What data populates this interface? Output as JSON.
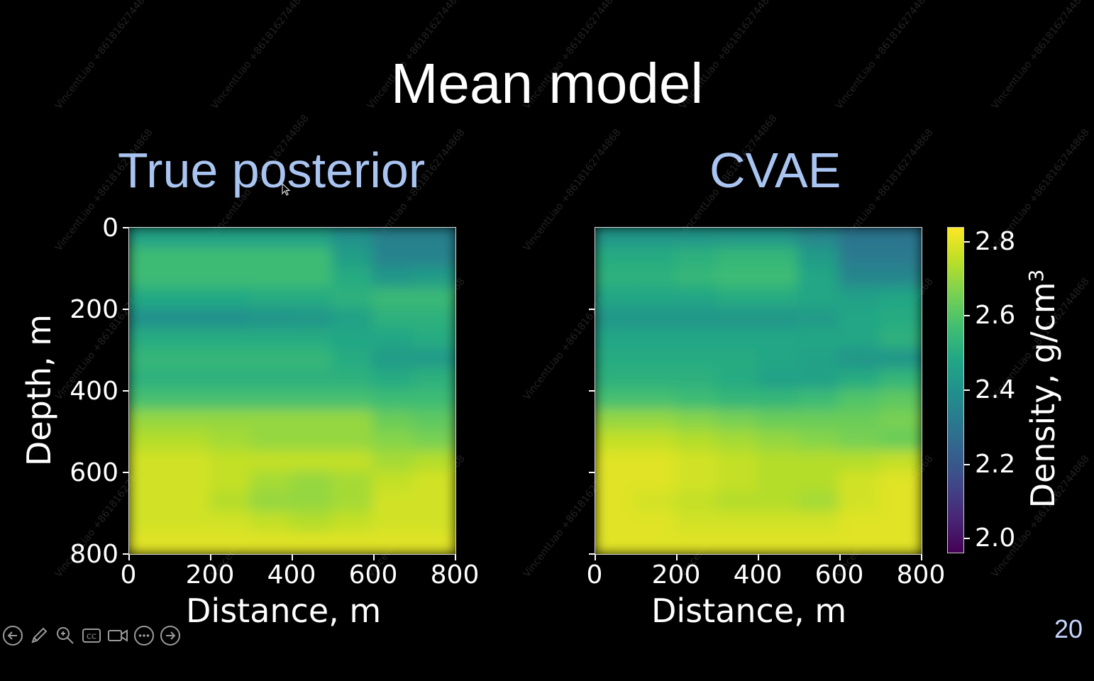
{
  "slide": {
    "title": "Mean model",
    "page_number": "20",
    "subtitles": {
      "left": "True posterior",
      "right": "CVAE"
    }
  },
  "colors": {
    "subtitle": "#a9c4f0",
    "background": "#000000",
    "page_number": "#c8d6ff"
  },
  "watermark_text": "VincentLiao +8618162744868",
  "toolbar": {
    "items": [
      {
        "name": "previous-slide-button",
        "icon": "arrow-left-circle-icon"
      },
      {
        "name": "pen-button",
        "icon": "pen-icon"
      },
      {
        "name": "zoom-button",
        "icon": "magnifier-icon"
      },
      {
        "name": "subtitles-button",
        "icon": "cc-icon",
        "label": "CC"
      },
      {
        "name": "video-button",
        "icon": "camera-icon"
      },
      {
        "name": "more-options-button",
        "icon": "ellipsis-icon"
      },
      {
        "name": "next-slide-button",
        "icon": "arrow-right-circle-icon"
      }
    ]
  },
  "chart_data": [
    {
      "type": "heatmap",
      "title": "True posterior",
      "xlabel": "Distance, m",
      "ylabel": "Depth, m",
      "xlim": [
        0,
        800
      ],
      "ylim": [
        800,
        0
      ],
      "xticks": [
        0,
        200,
        400,
        600,
        800
      ],
      "yticks": [
        0,
        200,
        400,
        600,
        800
      ],
      "colormap": "viridis",
      "color_range": [
        1.96,
        2.84
      ],
      "x_centers": [
        50,
        150,
        250,
        350,
        450,
        550,
        650,
        750
      ],
      "y_centers": [
        25,
        75,
        125,
        175,
        225,
        275,
        325,
        375,
        425,
        475,
        525,
        575,
        625,
        675,
        725,
        775
      ],
      "values": [
        [
          2.46,
          2.46,
          2.46,
          2.46,
          2.46,
          2.4,
          2.34,
          2.34
        ],
        [
          2.56,
          2.56,
          2.56,
          2.56,
          2.56,
          2.45,
          2.35,
          2.35
        ],
        [
          2.56,
          2.56,
          2.56,
          2.56,
          2.56,
          2.5,
          2.42,
          2.44
        ],
        [
          2.49,
          2.49,
          2.49,
          2.5,
          2.5,
          2.52,
          2.55,
          2.55
        ],
        [
          2.4,
          2.4,
          2.4,
          2.41,
          2.42,
          2.46,
          2.52,
          2.52
        ],
        [
          2.5,
          2.5,
          2.5,
          2.5,
          2.5,
          2.48,
          2.48,
          2.5
        ],
        [
          2.54,
          2.54,
          2.54,
          2.54,
          2.54,
          2.5,
          2.44,
          2.44
        ],
        [
          2.52,
          2.52,
          2.52,
          2.52,
          2.52,
          2.52,
          2.5,
          2.52
        ],
        [
          2.58,
          2.58,
          2.58,
          2.58,
          2.58,
          2.58,
          2.56,
          2.56
        ],
        [
          2.7,
          2.7,
          2.7,
          2.7,
          2.7,
          2.7,
          2.64,
          2.62
        ],
        [
          2.74,
          2.74,
          2.72,
          2.7,
          2.7,
          2.7,
          2.68,
          2.66
        ],
        [
          2.78,
          2.78,
          2.76,
          2.76,
          2.76,
          2.76,
          2.72,
          2.74
        ],
        [
          2.78,
          2.78,
          2.76,
          2.72,
          2.7,
          2.72,
          2.76,
          2.78
        ],
        [
          2.78,
          2.78,
          2.74,
          2.7,
          2.7,
          2.72,
          2.78,
          2.78
        ],
        [
          2.78,
          2.78,
          2.78,
          2.76,
          2.74,
          2.76,
          2.78,
          2.78
        ],
        [
          2.8,
          2.8,
          2.8,
          2.8,
          2.8,
          2.8,
          2.8,
          2.8
        ]
      ]
    },
    {
      "type": "heatmap",
      "title": "CVAE",
      "xlabel": "Distance, m",
      "ylabel": "",
      "xlim": [
        0,
        800
      ],
      "ylim": [
        800,
        0
      ],
      "xticks": [
        0,
        200,
        400,
        600,
        800
      ],
      "colormap": "viridis",
      "color_range": [
        1.96,
        2.84
      ],
      "x_centers": [
        50,
        150,
        250,
        350,
        450,
        550,
        650,
        750
      ],
      "y_centers": [
        25,
        75,
        125,
        175,
        225,
        275,
        325,
        375,
        425,
        475,
        525,
        575,
        625,
        675,
        725,
        775
      ],
      "values": [
        [
          2.42,
          2.42,
          2.42,
          2.42,
          2.42,
          2.36,
          2.3,
          2.3
        ],
        [
          2.5,
          2.5,
          2.52,
          2.54,
          2.54,
          2.44,
          2.32,
          2.32
        ],
        [
          2.52,
          2.52,
          2.54,
          2.56,
          2.56,
          2.48,
          2.36,
          2.36
        ],
        [
          2.48,
          2.48,
          2.48,
          2.5,
          2.5,
          2.48,
          2.46,
          2.48
        ],
        [
          2.42,
          2.42,
          2.42,
          2.42,
          2.42,
          2.44,
          2.48,
          2.5
        ],
        [
          2.48,
          2.48,
          2.48,
          2.48,
          2.48,
          2.48,
          2.48,
          2.52
        ],
        [
          2.5,
          2.5,
          2.5,
          2.5,
          2.48,
          2.46,
          2.42,
          2.42
        ],
        [
          2.52,
          2.52,
          2.52,
          2.5,
          2.46,
          2.46,
          2.5,
          2.54
        ],
        [
          2.58,
          2.58,
          2.56,
          2.54,
          2.54,
          2.56,
          2.6,
          2.62
        ],
        [
          2.7,
          2.7,
          2.68,
          2.66,
          2.64,
          2.64,
          2.64,
          2.66
        ],
        [
          2.76,
          2.76,
          2.74,
          2.72,
          2.7,
          2.68,
          2.66,
          2.64
        ],
        [
          2.8,
          2.8,
          2.78,
          2.76,
          2.74,
          2.74,
          2.74,
          2.76
        ],
        [
          2.8,
          2.8,
          2.78,
          2.76,
          2.74,
          2.74,
          2.78,
          2.8
        ],
        [
          2.8,
          2.78,
          2.76,
          2.74,
          2.74,
          2.72,
          2.78,
          2.8
        ],
        [
          2.8,
          2.8,
          2.78,
          2.78,
          2.78,
          2.78,
          2.8,
          2.8
        ],
        [
          2.8,
          2.8,
          2.8,
          2.8,
          2.8,
          2.8,
          2.8,
          2.8
        ]
      ]
    }
  ],
  "colorbar": {
    "label": "Density, g/cm",
    "label_superscript": "3",
    "ticks": [
      "2.0",
      "2.2",
      "2.4",
      "2.6",
      "2.8"
    ],
    "tick_values": [
      2.0,
      2.2,
      2.4,
      2.6,
      2.8
    ],
    "range": [
      1.96,
      2.84
    ]
  },
  "axes_text": {
    "left_y_ticks": [
      "0",
      "200",
      "400",
      "600",
      "800"
    ],
    "x_ticks": [
      "0",
      "200",
      "400",
      "600",
      "800"
    ]
  }
}
